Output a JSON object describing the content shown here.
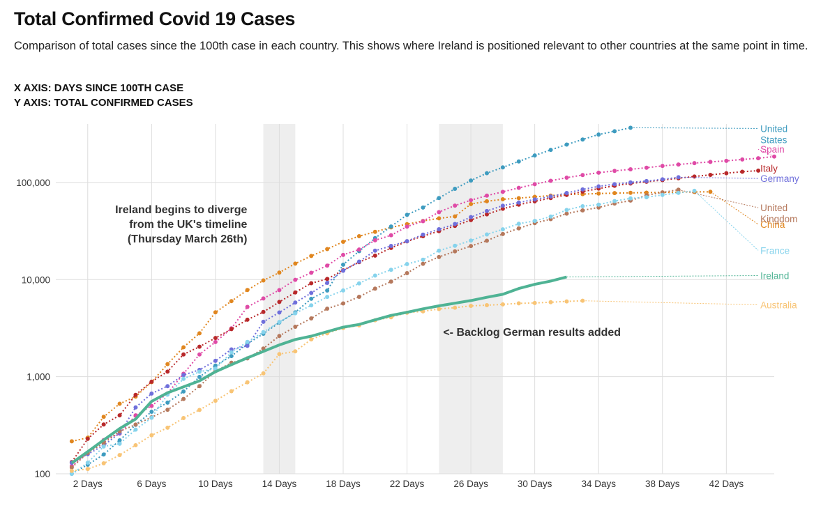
{
  "header": {
    "title": "Total Confirmed Covid 19 Cases",
    "subtitle": "Comparison of total cases since the 100th case in each country. This shows where Ireland is positioned relevant to other countries at the same point in time.",
    "x_axis_note": "X AXIS: DAYS SINCE 100TH CASE",
    "y_axis_note": "Y AXIS: TOTAL CONFIRMED CASES"
  },
  "chart_data": {
    "type": "line",
    "y_scale": "log",
    "ylim": [
      100,
      400000
    ],
    "xlim": [
      0,
      45
    ],
    "y_ticks": [
      100,
      1000,
      10000,
      100000
    ],
    "y_tick_labels": [
      "100",
      "1,000",
      "10,000",
      "100,000"
    ],
    "x_ticks": [
      2,
      6,
      10,
      14,
      18,
      22,
      26,
      30,
      34,
      38,
      42
    ],
    "x_tick_labels": [
      "2 Days",
      "6 Days",
      "10 Days",
      "14 Days",
      "18 Days",
      "22 Days",
      "26 Days",
      "30 Days",
      "34 Days",
      "38 Days",
      "42 Days"
    ],
    "grid": true,
    "highlight_bands": [
      {
        "x": [
          13,
          15
        ],
        "color": "#eeeeee"
      },
      {
        "x": [
          24,
          28
        ],
        "color": "#eeeeee"
      }
    ],
    "annotations": [
      {
        "lines": [
          "Ireland begins to diverge",
          "from the UK's timeline",
          "(Thursday March 26th)"
        ],
        "x": 14,
        "y": 100000,
        "align": "end"
      },
      {
        "lines": [
          "<- Backlog German results added"
        ],
        "x": 24,
        "y": 3000,
        "align": "start"
      }
    ],
    "series": [
      {
        "name": "China",
        "label_lines": [
          "China"
        ],
        "color": "#e0861f",
        "label_y": 37000,
        "values": [
          216,
          235,
          386,
          526,
          623,
          878,
          1346,
          2008,
          2800,
          4600,
          6000,
          7800,
          9800,
          11800,
          14600,
          17500,
          20600,
          24500,
          28000,
          31000,
          34500,
          37200,
          40200,
          42700,
          44700,
          59900,
          64000,
          67100,
          69000,
          71200,
          73300,
          75100,
          75900,
          76900,
          77700,
          78200,
          78600,
          78900,
          79400,
          79900,
          80150
        ]
      },
      {
        "name": "United States",
        "label_lines": [
          "United",
          "States"
        ],
        "color": "#3d9bbf",
        "label_y": 360000,
        "values": [
          100,
          124,
          158,
          221,
          319,
          435,
          541,
          704,
          994,
          1301,
          1630,
          2183,
          2770,
          3613,
          4596,
          6344,
          7708,
          14250,
          19624,
          26747,
          35206,
          46442,
          55231,
          69194,
          85991,
          104686,
          124665,
          143025,
          164620,
          189618,
          216721,
          245540,
          277205,
          311637,
          336830,
          366317
        ]
      },
      {
        "name": "Spain",
        "label_lines": [
          "Spain"
        ],
        "color": "#df4aa6",
        "label_y": 220000,
        "values": [
          120,
          165,
          222,
          259,
          400,
          500,
          673,
          1073,
          1695,
          2277,
          3146,
          5232,
          6391,
          7798,
          9942,
          11748,
          13910,
          17963,
          20410,
          25374,
          28603,
          35136,
          39885,
          49515,
          57786,
          65719,
          73235,
          80110,
          87956,
          95923,
          104118,
          112065,
          119199,
          126168,
          131646,
          136675,
          141942,
          148220,
          153222,
          158273,
          163027,
          166831,
          172541,
          177644,
          184948
        ]
      },
      {
        "name": "Italy",
        "label_lines": [
          "Italy"
        ],
        "color": "#b8282a",
        "label_y": 140000,
        "values": [
          132,
          229,
          322,
          400,
          650,
          888,
          1128,
          1694,
          2036,
          2502,
          3089,
          3858,
          4636,
          5883,
          7375,
          9172,
          10149,
          12462,
          15113,
          17660,
          21157,
          24747,
          27980,
          31506,
          35713,
          41035,
          47021,
          53578,
          59138,
          63927,
          69176,
          74386,
          80589,
          86498,
          92472,
          97689,
          101739,
          105792,
          110574,
          115242,
          119827,
          124632,
          128948,
          132547
        ]
      },
      {
        "name": "Germany",
        "label_lines": [
          "Germany"
        ],
        "color": "#6f6fdb",
        "label_y": 110000,
        "values": [
          130,
          159,
          196,
          262,
          482,
          670,
          799,
          1040,
          1176,
          1457,
          1908,
          2078,
          3675,
          4585,
          5795,
          7272,
          9257,
          12327,
          15320,
          19848,
          22213,
          24873,
          29056,
          32986,
          37323,
          43938,
          50871,
          57695,
          62095,
          66885,
          71808,
          77872,
          84794,
          91159,
          96092,
          100123,
          103374,
          107663,
          113296
        ]
      },
      {
        "name": "United Kingdom",
        "label_lines": [
          "United",
          "Kingdom"
        ],
        "color": "#b5785c",
        "label_y": 55000,
        "values": [
          116,
          164,
          207,
          273,
          321,
          382,
          456,
          590,
          798,
          1140,
          1391,
          1543,
          1950,
          2626,
          3269,
          3983,
          5018,
          5683,
          6650,
          8077,
          9529,
          11658,
          14543,
          17089,
          19522,
          22141,
          25150,
          29474,
          33718,
          38168,
          41903,
          47806,
          51608,
          55242,
          60733,
          65077,
          73758,
          78991,
          84279
        ]
      },
      {
        "name": "France",
        "label_lines": [
          "France"
        ],
        "color": "#86d3ec",
        "label_y": 20000,
        "values": [
          100,
          130,
          191,
          204,
          285,
          377,
          653,
          949,
          1126,
          1209,
          1784,
          2281,
          2876,
          3661,
          4499,
          5423,
          6633,
          7730,
          9134,
          10995,
          12612,
          14459,
          16018,
          19856,
          22304,
          25233,
          29155,
          32964,
          37575,
          40174,
          44550,
          52128,
          56989,
          59105,
          64338,
          68605,
          70478,
          74390,
          78167,
          82048
        ]
      },
      {
        "name": "Ireland",
        "label_lines": [
          "Ireland"
        ],
        "color": "#4fb394",
        "label_y": 11000,
        "highlight": true,
        "values": [
          129,
          169,
          223,
          292,
          366,
          557,
          683,
          785,
          906,
          1125,
          1329,
          1564,
          1819,
          2121,
          2415,
          2615,
          2910,
          3235,
          3447,
          3849,
          4273,
          4604,
          4994,
          5364,
          5709,
          6074,
          6574,
          7054,
          8089,
          8928,
          9655,
          10647
        ]
      },
      {
        "name": "Australia",
        "label_lines": [
          "Australia"
        ],
        "color": "#f8c475",
        "label_y": 5500,
        "values": [
          107,
          112,
          128,
          156,
          197,
          249,
          298,
          375,
          454,
          565,
          709,
          875,
          1081,
          1709,
          1823,
          2423,
          2799,
          3166,
          3378,
          3809,
          4093,
          4557,
          4707,
          4976,
          5136,
          5358,
          5454,
          5548,
          5687,
          5744,
          5844,
          5956,
          6052
        ]
      }
    ]
  }
}
